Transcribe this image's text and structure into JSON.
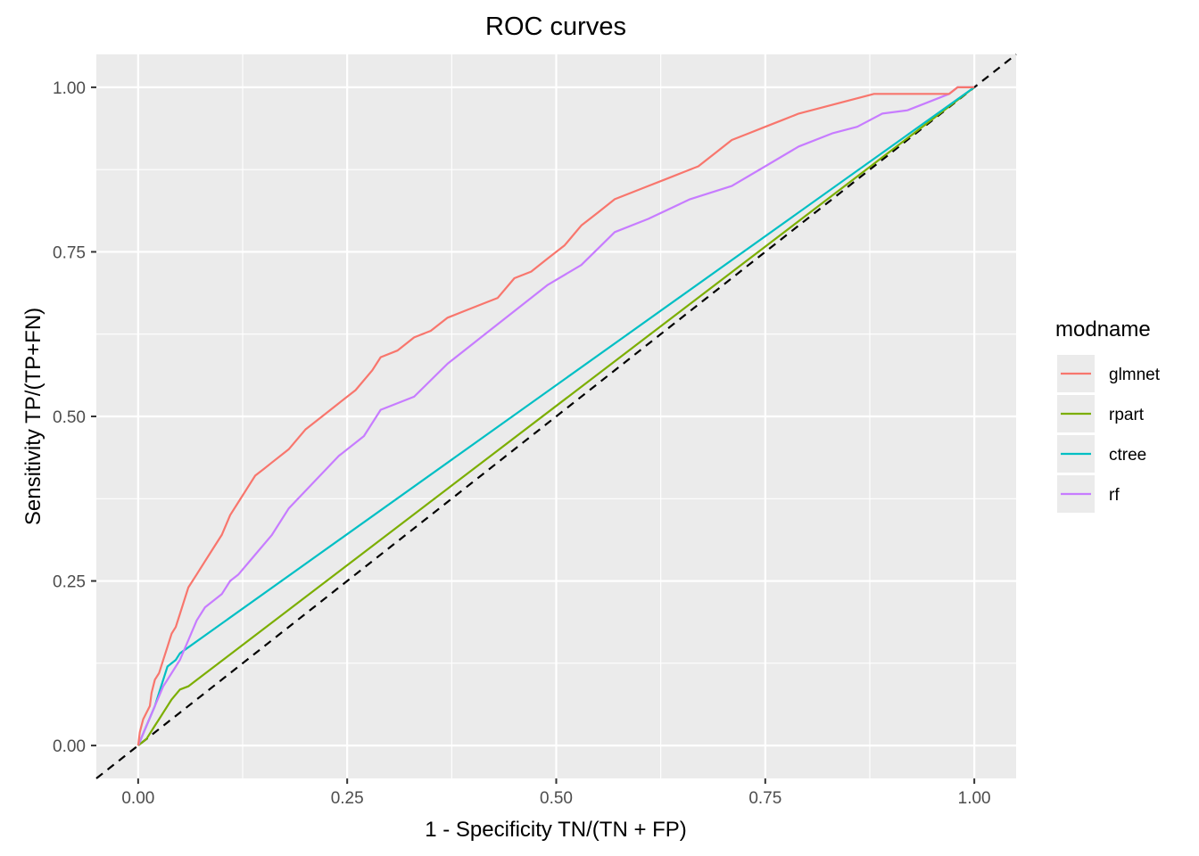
{
  "chart_data": {
    "type": "line",
    "title": "ROC curves",
    "xlabel": "1 - Specificity TN/(TN + FP)",
    "ylabel": "Sensitivity TP/(TP+FN)",
    "xlim": [
      -0.05,
      1.05
    ],
    "ylim": [
      -0.05,
      1.05
    ],
    "x_ticks": [
      "0.00",
      "0.25",
      "0.50",
      "0.75",
      "1.00"
    ],
    "y_ticks": [
      "0.00",
      "0.25",
      "0.50",
      "0.75",
      "1.00"
    ],
    "grid": true,
    "legend": {
      "title": "modname",
      "position": "right"
    },
    "reference_line": {
      "from": [
        0,
        0
      ],
      "to": [
        1,
        1
      ],
      "style": "dashed",
      "color": "#000000"
    },
    "series": [
      {
        "name": "glmnet",
        "color": "#F8766D",
        "points": [
          [
            0,
            0
          ],
          [
            0.002,
            0.02
          ],
          [
            0.004,
            0.03
          ],
          [
            0.006,
            0.04
          ],
          [
            0.01,
            0.05
          ],
          [
            0.014,
            0.06
          ],
          [
            0.016,
            0.08
          ],
          [
            0.02,
            0.1
          ],
          [
            0.025,
            0.11
          ],
          [
            0.03,
            0.13
          ],
          [
            0.035,
            0.15
          ],
          [
            0.04,
            0.17
          ],
          [
            0.045,
            0.18
          ],
          [
            0.05,
            0.2
          ],
          [
            0.055,
            0.22
          ],
          [
            0.06,
            0.24
          ],
          [
            0.07,
            0.26
          ],
          [
            0.08,
            0.28
          ],
          [
            0.09,
            0.3
          ],
          [
            0.1,
            0.32
          ],
          [
            0.11,
            0.35
          ],
          [
            0.12,
            0.37
          ],
          [
            0.13,
            0.39
          ],
          [
            0.14,
            0.41
          ],
          [
            0.15,
            0.42
          ],
          [
            0.16,
            0.43
          ],
          [
            0.18,
            0.45
          ],
          [
            0.2,
            0.48
          ],
          [
            0.22,
            0.5
          ],
          [
            0.24,
            0.52
          ],
          [
            0.26,
            0.54
          ],
          [
            0.28,
            0.57
          ],
          [
            0.29,
            0.59
          ],
          [
            0.31,
            0.6
          ],
          [
            0.33,
            0.62
          ],
          [
            0.35,
            0.63
          ],
          [
            0.37,
            0.65
          ],
          [
            0.39,
            0.66
          ],
          [
            0.41,
            0.67
          ],
          [
            0.43,
            0.68
          ],
          [
            0.45,
            0.71
          ],
          [
            0.47,
            0.72
          ],
          [
            0.49,
            0.74
          ],
          [
            0.51,
            0.76
          ],
          [
            0.53,
            0.79
          ],
          [
            0.55,
            0.81
          ],
          [
            0.57,
            0.83
          ],
          [
            0.59,
            0.84
          ],
          [
            0.61,
            0.85
          ],
          [
            0.63,
            0.86
          ],
          [
            0.65,
            0.87
          ],
          [
            0.67,
            0.88
          ],
          [
            0.69,
            0.9
          ],
          [
            0.71,
            0.92
          ],
          [
            0.73,
            0.93
          ],
          [
            0.75,
            0.94
          ],
          [
            0.77,
            0.95
          ],
          [
            0.79,
            0.96
          ],
          [
            0.82,
            0.97
          ],
          [
            0.85,
            0.98
          ],
          [
            0.88,
            0.99
          ],
          [
            0.9,
            0.99
          ],
          [
            0.92,
            0.99
          ],
          [
            0.95,
            0.99
          ],
          [
            0.97,
            0.99
          ],
          [
            0.98,
            1.0
          ],
          [
            1.0,
            1.0
          ]
        ]
      },
      {
        "name": "rpart",
        "color": "#7CAE00",
        "points": [
          [
            0,
            0
          ],
          [
            0.01,
            0.01
          ],
          [
            0.015,
            0.02
          ],
          [
            0.02,
            0.03
          ],
          [
            0.025,
            0.04
          ],
          [
            0.03,
            0.05
          ],
          [
            0.035,
            0.06
          ],
          [
            0.04,
            0.07
          ],
          [
            0.05,
            0.085
          ],
          [
            0.06,
            0.09
          ],
          [
            1.0,
            1.0
          ]
        ]
      },
      {
        "name": "ctree",
        "color": "#00BFC4",
        "points": [
          [
            0,
            0
          ],
          [
            0.01,
            0.03
          ],
          [
            0.02,
            0.06
          ],
          [
            0.025,
            0.08
          ],
          [
            0.03,
            0.1
          ],
          [
            0.035,
            0.12
          ],
          [
            0.045,
            0.13
          ],
          [
            0.05,
            0.14
          ],
          [
            1.0,
            1.0
          ]
        ]
      },
      {
        "name": "rf",
        "color": "#C77CFF",
        "points": [
          [
            0,
            0
          ],
          [
            0.01,
            0.03
          ],
          [
            0.02,
            0.06
          ],
          [
            0.03,
            0.09
          ],
          [
            0.04,
            0.11
          ],
          [
            0.05,
            0.13
          ],
          [
            0.06,
            0.16
          ],
          [
            0.07,
            0.19
          ],
          [
            0.08,
            0.21
          ],
          [
            0.1,
            0.23
          ],
          [
            0.11,
            0.25
          ],
          [
            0.12,
            0.26
          ],
          [
            0.14,
            0.29
          ],
          [
            0.16,
            0.32
          ],
          [
            0.18,
            0.36
          ],
          [
            0.21,
            0.4
          ],
          [
            0.24,
            0.44
          ],
          [
            0.27,
            0.47
          ],
          [
            0.29,
            0.51
          ],
          [
            0.33,
            0.53
          ],
          [
            0.37,
            0.58
          ],
          [
            0.41,
            0.62
          ],
          [
            0.45,
            0.66
          ],
          [
            0.49,
            0.7
          ],
          [
            0.53,
            0.73
          ],
          [
            0.57,
            0.78
          ],
          [
            0.61,
            0.8
          ],
          [
            0.66,
            0.83
          ],
          [
            0.71,
            0.85
          ],
          [
            0.75,
            0.88
          ],
          [
            0.79,
            0.91
          ],
          [
            0.83,
            0.93
          ],
          [
            0.86,
            0.94
          ],
          [
            0.89,
            0.96
          ],
          [
            0.92,
            0.965
          ],
          [
            0.95,
            0.98
          ],
          [
            0.97,
            0.99
          ],
          [
            0.98,
            1.0
          ],
          [
            1.0,
            1.0
          ]
        ]
      }
    ]
  }
}
